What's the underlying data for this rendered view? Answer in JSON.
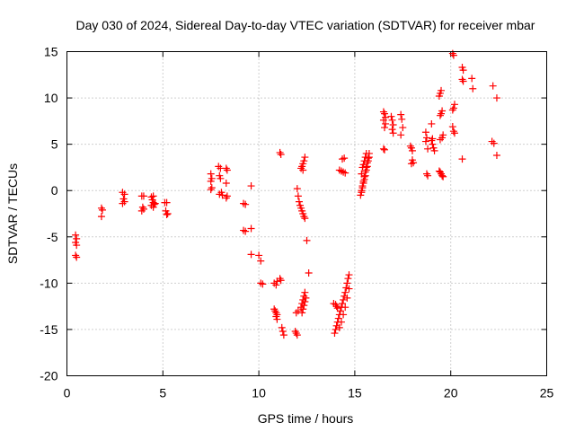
{
  "chart_data": {
    "type": "scatter",
    "title": "Day 030 of 2024, Sidereal Day-to-day VTEC variation (SDTVAR) for receiver mbar",
    "xlabel": "GPS time / hours",
    "ylabel": "SDTVAR / TECUs",
    "xlim": [
      0,
      25
    ],
    "ylim": [
      -20,
      15
    ],
    "xticks": [
      0,
      5,
      10,
      15,
      20,
      25
    ],
    "yticks": [
      -20,
      -15,
      -10,
      -5,
      0,
      5,
      10,
      15
    ],
    "grid": true,
    "marker": "plus",
    "color": "#ff0000",
    "series": [
      {
        "points": [
          [
            0.45,
            -4.8
          ],
          [
            0.5,
            -5.2
          ],
          [
            0.45,
            -5.6
          ],
          [
            0.5,
            -5.9
          ],
          [
            0.45,
            -7.0
          ],
          [
            0.5,
            -7.2
          ],
          [
            1.8,
            -1.9
          ],
          [
            1.85,
            -2.1
          ],
          [
            1.8,
            -2.8
          ],
          [
            2.9,
            -0.2
          ],
          [
            3.0,
            -0.4
          ],
          [
            2.95,
            -0.9
          ],
          [
            3.0,
            -1.2
          ],
          [
            2.9,
            -1.4
          ],
          [
            3.9,
            -0.6
          ],
          [
            4.0,
            -0.6
          ],
          [
            3.95,
            -1.8
          ],
          [
            4.0,
            -2.0
          ],
          [
            3.9,
            -2.2
          ],
          [
            4.4,
            -0.7
          ],
          [
            4.5,
            -0.6
          ],
          [
            4.45,
            -1.0
          ],
          [
            4.5,
            -1.3
          ],
          [
            4.55,
            -1.5
          ],
          [
            4.4,
            -1.6
          ],
          [
            4.6,
            -1.4
          ],
          [
            4.5,
            -1.8
          ],
          [
            5.1,
            -1.3
          ],
          [
            5.2,
            -1.3
          ],
          [
            5.15,
            -2.2
          ],
          [
            5.25,
            -2.5
          ],
          [
            5.2,
            -2.6
          ],
          [
            7.5,
            1.8
          ],
          [
            7.55,
            1.3
          ],
          [
            7.5,
            1.0
          ],
          [
            7.55,
            0.3
          ],
          [
            7.5,
            0.1
          ],
          [
            7.9,
            2.6
          ],
          [
            8.0,
            2.4
          ],
          [
            7.95,
            1.6
          ],
          [
            8.0,
            1.3
          ],
          [
            8.05,
            -0.2
          ],
          [
            7.95,
            -0.4
          ],
          [
            8.1,
            -0.5
          ],
          [
            8.3,
            2.4
          ],
          [
            8.35,
            2.2
          ],
          [
            8.3,
            0.8
          ],
          [
            8.35,
            -0.6
          ],
          [
            8.3,
            -0.8
          ],
          [
            9.2,
            -1.4
          ],
          [
            9.3,
            -1.5
          ],
          [
            9.2,
            -4.3
          ],
          [
            9.3,
            -4.4
          ],
          [
            9.6,
            0.5
          ],
          [
            9.6,
            -4.1
          ],
          [
            9.6,
            -6.9
          ],
          [
            10.0,
            -7.0
          ],
          [
            10.1,
            -7.6
          ],
          [
            10.1,
            -10.0
          ],
          [
            10.2,
            -10.1
          ],
          [
            10.8,
            -10.0
          ],
          [
            10.9,
            -10.2
          ],
          [
            10.95,
            -9.8
          ],
          [
            10.8,
            -12.8
          ],
          [
            10.85,
            -13.0
          ],
          [
            10.9,
            -13.2
          ],
          [
            10.95,
            -13.4
          ],
          [
            10.9,
            -13.6
          ],
          [
            10.95,
            -13.9
          ],
          [
            11.1,
            -9.5
          ],
          [
            11.15,
            -9.7
          ],
          [
            11.1,
            4.1
          ],
          [
            11.15,
            3.9
          ],
          [
            11.2,
            -14.8
          ],
          [
            11.25,
            -15.2
          ],
          [
            11.3,
            -15.6
          ],
          [
            11.9,
            -15.2
          ],
          [
            11.95,
            -15.4
          ],
          [
            12.0,
            -15.6
          ],
          [
            11.95,
            -13.2
          ],
          [
            12.05,
            -13.0
          ],
          [
            12.0,
            0.2
          ],
          [
            12.05,
            -0.6
          ],
          [
            12.1,
            -1.2
          ],
          [
            12.15,
            -1.6
          ],
          [
            12.2,
            -1.9
          ],
          [
            12.25,
            -2.2
          ],
          [
            12.3,
            -2.5
          ],
          [
            12.35,
            -2.8
          ],
          [
            12.4,
            -3.0
          ],
          [
            12.2,
            2.4
          ],
          [
            12.25,
            2.6
          ],
          [
            12.3,
            2.9
          ],
          [
            12.35,
            3.2
          ],
          [
            12.4,
            3.6
          ],
          [
            12.3,
            2.2
          ],
          [
            12.2,
            -12.6
          ],
          [
            12.25,
            -12.2
          ],
          [
            12.3,
            -11.8
          ],
          [
            12.35,
            -11.4
          ],
          [
            12.4,
            -11.0
          ],
          [
            12.25,
            -13.2
          ],
          [
            12.3,
            -12.8
          ],
          [
            12.35,
            -12.4
          ],
          [
            12.4,
            -12.0
          ],
          [
            12.45,
            -11.6
          ],
          [
            12.5,
            -5.4
          ],
          [
            12.6,
            -8.9
          ],
          [
            13.9,
            -12.2
          ],
          [
            14.0,
            -12.3
          ],
          [
            14.05,
            -12.5
          ],
          [
            14.1,
            -12.7
          ],
          [
            13.95,
            -15.4
          ],
          [
            14.0,
            -15.0
          ],
          [
            14.05,
            -14.6
          ],
          [
            14.1,
            -14.2
          ],
          [
            14.15,
            -13.8
          ],
          [
            14.2,
            -13.4
          ],
          [
            14.25,
            -13.0
          ],
          [
            14.3,
            -12.6
          ],
          [
            14.35,
            -12.2
          ],
          [
            14.4,
            -11.8
          ],
          [
            14.45,
            -11.4
          ],
          [
            14.5,
            -11.0
          ],
          [
            14.55,
            -10.5
          ],
          [
            14.6,
            -10.0
          ],
          [
            14.65,
            -9.5
          ],
          [
            14.7,
            -9.1
          ],
          [
            14.2,
            -14.8
          ],
          [
            14.3,
            -14.2
          ],
          [
            14.4,
            -13.4
          ],
          [
            14.5,
            -12.6
          ],
          [
            14.6,
            -11.6
          ],
          [
            14.7,
            -10.6
          ],
          [
            14.2,
            2.2
          ],
          [
            14.3,
            2.1
          ],
          [
            14.4,
            2.0
          ],
          [
            14.5,
            1.9
          ],
          [
            14.35,
            3.4
          ],
          [
            14.45,
            3.5
          ],
          [
            15.3,
            -0.5
          ],
          [
            15.35,
            0.0
          ],
          [
            15.4,
            0.5
          ],
          [
            15.45,
            1.0
          ],
          [
            15.5,
            1.5
          ],
          [
            15.55,
            2.0
          ],
          [
            15.6,
            2.5
          ],
          [
            15.65,
            3.0
          ],
          [
            15.7,
            3.5
          ],
          [
            15.75,
            4.0
          ],
          [
            15.35,
            -0.2
          ],
          [
            15.4,
            0.3
          ],
          [
            15.5,
            1.2
          ],
          [
            15.6,
            2.2
          ],
          [
            15.7,
            3.2
          ],
          [
            15.4,
            2.5
          ],
          [
            15.45,
            2.8
          ],
          [
            15.5,
            3.2
          ],
          [
            15.55,
            3.6
          ],
          [
            15.6,
            4.0
          ],
          [
            15.35,
            1.8
          ],
          [
            15.45,
            0.8
          ],
          [
            15.55,
            1.6
          ],
          [
            15.65,
            2.6
          ],
          [
            15.75,
            3.6
          ],
          [
            16.5,
            8.5
          ],
          [
            16.55,
            8.3
          ],
          [
            16.6,
            7.9
          ],
          [
            16.5,
            7.6
          ],
          [
            16.6,
            7.2
          ],
          [
            16.55,
            6.8
          ],
          [
            16.5,
            4.5
          ],
          [
            16.55,
            4.4
          ],
          [
            16.9,
            8.0
          ],
          [
            16.95,
            7.6
          ],
          [
            17.0,
            7.1
          ],
          [
            16.95,
            6.6
          ],
          [
            17.0,
            6.2
          ],
          [
            17.4,
            8.2
          ],
          [
            17.45,
            7.7
          ],
          [
            17.5,
            6.8
          ],
          [
            17.4,
            6.0
          ],
          [
            17.9,
            4.8
          ],
          [
            17.95,
            4.6
          ],
          [
            18.0,
            4.3
          ],
          [
            18.0,
            3.3
          ],
          [
            18.05,
            3.0
          ],
          [
            17.95,
            2.9
          ],
          [
            18.7,
            6.3
          ],
          [
            18.75,
            5.7
          ],
          [
            18.7,
            5.3
          ],
          [
            18.8,
            4.5
          ],
          [
            18.75,
            1.8
          ],
          [
            18.8,
            1.6
          ],
          [
            19.0,
            5.4
          ],
          [
            19.05,
            5.0
          ],
          [
            19.1,
            4.6
          ],
          [
            19.15,
            4.3
          ],
          [
            19.05,
            5.6
          ],
          [
            19.0,
            7.2
          ],
          [
            19.4,
            10.2
          ],
          [
            19.45,
            10.5
          ],
          [
            19.5,
            10.8
          ],
          [
            19.45,
            8.1
          ],
          [
            19.5,
            8.3
          ],
          [
            19.55,
            8.6
          ],
          [
            19.4,
            2.1
          ],
          [
            19.45,
            2.0
          ],
          [
            19.5,
            1.8
          ],
          [
            19.55,
            1.6
          ],
          [
            19.6,
            1.5
          ],
          [
            19.45,
            5.5
          ],
          [
            19.55,
            5.7
          ],
          [
            19.6,
            6.0
          ],
          [
            20.1,
            14.8
          ],
          [
            20.15,
            14.6
          ],
          [
            20.1,
            8.7
          ],
          [
            20.15,
            8.9
          ],
          [
            20.2,
            9.3
          ],
          [
            20.1,
            6.9
          ],
          [
            20.15,
            6.4
          ],
          [
            20.2,
            6.2
          ],
          [
            20.6,
            13.3
          ],
          [
            20.65,
            13.0
          ],
          [
            20.6,
            12.0
          ],
          [
            20.65,
            11.8
          ],
          [
            20.6,
            3.4
          ],
          [
            21.1,
            12.1
          ],
          [
            21.15,
            11.0
          ],
          [
            22.2,
            11.3
          ],
          [
            22.15,
            5.3
          ],
          [
            22.25,
            5.1
          ],
          [
            22.4,
            10.0
          ],
          [
            22.4,
            3.8
          ]
        ]
      }
    ]
  }
}
